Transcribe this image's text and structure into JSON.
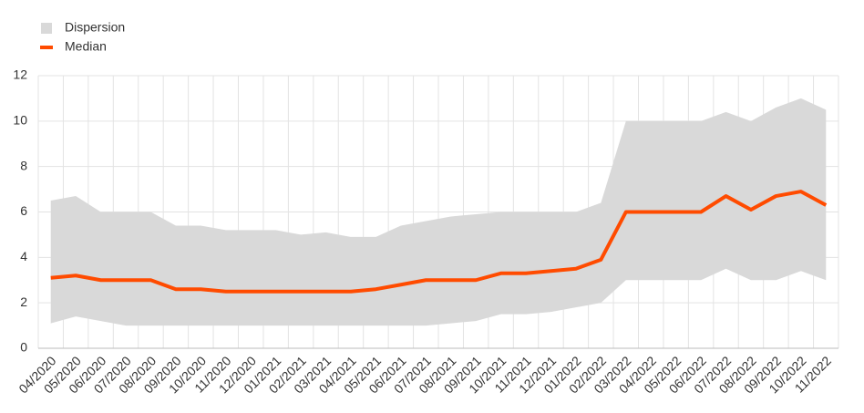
{
  "chart_data": {
    "type": "line",
    "categories": [
      "04/2020",
      "05/2020",
      "06/2020",
      "07/2020",
      "08/2020",
      "09/2020",
      "10/2020",
      "11/2020",
      "12/2020",
      "01/2021",
      "02/2021",
      "03/2021",
      "04/2021",
      "05/2021",
      "06/2021",
      "07/2021",
      "08/2021",
      "09/2021",
      "10/2021",
      "11/2021",
      "12/2021",
      "01/2022",
      "02/2022",
      "03/2022",
      "04/2022",
      "05/2022",
      "06/2022",
      "07/2022",
      "08/2022",
      "09/2022",
      "10/2022",
      "11/2022"
    ],
    "series": [
      {
        "name": "Dispersion",
        "color": "#d9d9d9",
        "high": [
          6.5,
          6.7,
          6.0,
          6.0,
          6.0,
          5.4,
          5.4,
          5.2,
          5.2,
          5.2,
          5.0,
          5.1,
          4.9,
          4.9,
          5.4,
          5.6,
          5.8,
          5.9,
          6.0,
          6.0,
          6.0,
          6.0,
          6.4,
          10.0,
          10.0,
          10.0,
          10.0,
          10.4,
          10.0,
          10.6,
          11.0,
          10.5
        ],
        "low": [
          1.1,
          1.4,
          1.2,
          1.0,
          1.0,
          1.0,
          1.0,
          1.0,
          1.0,
          1.0,
          1.0,
          1.0,
          1.0,
          1.0,
          1.0,
          1.0,
          1.1,
          1.2,
          1.5,
          1.5,
          1.6,
          1.8,
          2.0,
          3.0,
          3.0,
          3.0,
          3.0,
          3.5,
          3.0,
          3.0,
          3.4,
          3.0
        ]
      },
      {
        "name": "Median",
        "color": "#ff4b00",
        "values": [
          3.1,
          3.2,
          3.0,
          3.0,
          3.0,
          2.6,
          2.6,
          2.5,
          2.5,
          2.5,
          2.5,
          2.5,
          2.5,
          2.6,
          2.8,
          3.0,
          3.0,
          3.0,
          3.3,
          3.3,
          3.4,
          3.5,
          3.9,
          6.0,
          6.0,
          6.0,
          6.0,
          6.7,
          6.1,
          6.7,
          6.9,
          6.3
        ]
      }
    ],
    "ylim": [
      0,
      12
    ],
    "yticks": [
      0,
      2,
      4,
      6,
      8,
      10,
      12
    ],
    "grid": true,
    "legend": "top-left"
  }
}
